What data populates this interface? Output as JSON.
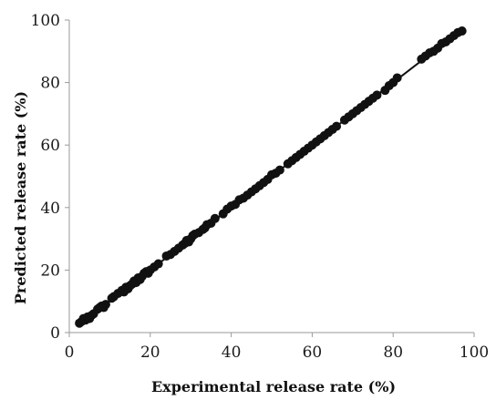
{
  "chart_data": {
    "type": "scatter",
    "title": "",
    "xlabel": "Experimental release rate (%)",
    "ylabel": "Predicted release rate (%)",
    "xlim": [
      0,
      100
    ],
    "ylim": [
      0,
      100
    ],
    "xticks": [
      "0",
      "20",
      "40",
      "60",
      "80",
      "100"
    ],
    "yticks": [
      "0",
      "20",
      "40",
      "60",
      "80",
      "100"
    ],
    "grid": false,
    "legend": "none",
    "marker_color": "#111111",
    "trendline": {
      "slope": 1.0,
      "intercept": 0.0,
      "color": "#111111"
    },
    "series": [
      {
        "x": [
          2.5,
          3,
          3.5,
          4,
          4.5,
          5,
          5.5,
          6,
          7,
          7.5,
          8,
          8.5,
          9,
          10.5,
          11,
          12,
          13,
          13.5,
          14,
          14.5,
          15,
          15.5,
          16,
          16.5,
          17,
          17.5,
          18,
          18.5,
          19,
          19.5,
          20,
          21,
          22,
          24,
          25,
          26,
          27,
          28,
          28.5,
          29,
          29.5,
          30,
          30.5,
          31,
          32,
          33,
          33.5,
          34,
          35,
          36,
          38,
          39,
          40,
          41,
          42,
          43,
          44,
          45,
          46,
          47,
          48,
          49,
          50,
          51,
          52,
          54,
          55,
          56,
          57,
          58,
          59,
          60,
          61,
          62,
          63,
          64,
          65,
          66,
          68,
          69,
          70,
          71,
          72,
          73,
          74,
          75,
          76,
          78,
          79,
          80,
          81,
          87,
          88,
          89,
          90,
          91,
          92,
          93,
          94,
          95,
          96,
          97
        ],
        "y": [
          3,
          3.5,
          4.5,
          4,
          5,
          4.5,
          5.5,
          6,
          7.5,
          8,
          8.5,
          8,
          9,
          11,
          11.5,
          12.5,
          13.5,
          13,
          14.5,
          14,
          15,
          15.5,
          16.5,
          16,
          17.5,
          17,
          18,
          19,
          19.5,
          19,
          20,
          21,
          22,
          24.5,
          25,
          26,
          27,
          28,
          28.5,
          29.5,
          29,
          30,
          31,
          31.5,
          32,
          33,
          33.5,
          34.5,
          35,
          36.5,
          38,
          39.5,
          40.5,
          41,
          42.5,
          43,
          44,
          45,
          46,
          47,
          48,
          49,
          50.5,
          51,
          52,
          54,
          55,
          56,
          57,
          58,
          59,
          60,
          61,
          62,
          63,
          64,
          65,
          66,
          68,
          69,
          70,
          71,
          72,
          73,
          74,
          75,
          76,
          77.5,
          79,
          80,
          81.5,
          87.5,
          88.5,
          89.5,
          90,
          91,
          92.5,
          93,
          94,
          95,
          96,
          96.5
        ]
      }
    ]
  }
}
